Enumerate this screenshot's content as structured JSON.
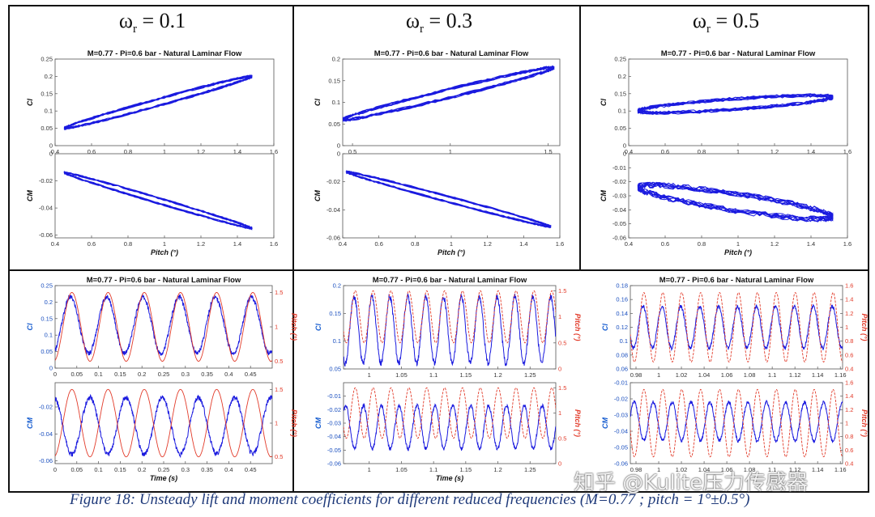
{
  "figure": {
    "omega_labels": [
      {
        "base": "ω",
        "sub": "r",
        "value": " = 0.1"
      },
      {
        "base": "ω",
        "sub": "r",
        "value": " = 0.3"
      },
      {
        "base": "ω",
        "sub": "r",
        "value": " = 0.5"
      }
    ],
    "caption": "Figure 18: Unsteady lift and moment coefficients for different reduced frequencies (M=0.77 ;  pitch = 1°±0.5°)",
    "watermark": "知乎 @Kulite压力传感器"
  },
  "chart_data": [
    {
      "id": "cl-pitch-0.1",
      "type": "line",
      "title": "M=0.77 -  Pi=0.6 bar -  Natural Laminar Flow",
      "xlabel": "",
      "ylabel": "Cl",
      "xlim": [
        0.4,
        1.6
      ],
      "ylim": [
        0,
        0.25
      ],
      "xticks": [
        "0.4",
        "0.6",
        "0.8",
        "1",
        "1.2",
        "1.4",
        "1.6"
      ],
      "yticks": [
        "0",
        "0.05",
        "0.1",
        "0.15",
        "0.2",
        "0.25"
      ],
      "series": [
        {
          "color": "#1a1adf",
          "loop": {
            "x_min": 0.45,
            "x_max": 1.48,
            "y_at_min": 0.05,
            "y_at_max": 0.2,
            "width": 0.02
          }
        }
      ]
    },
    {
      "id": "cm-pitch-0.1",
      "type": "line",
      "title": "",
      "xlabel": "Pitch (°)",
      "ylabel": "CM",
      "xlim": [
        0.4,
        1.6
      ],
      "ylim": [
        -0.062,
        0
      ],
      "xticks": [
        "0.4",
        "0.6",
        "0.8",
        "1",
        "1.2",
        "1.4",
        "1.6"
      ],
      "yticks": [
        "-0.06",
        "-0.04",
        "-0.02",
        "0"
      ],
      "series": [
        {
          "color": "#1a1adf",
          "loop": {
            "x_min": 0.45,
            "x_max": 1.48,
            "y_at_min": -0.014,
            "y_at_max": -0.055,
            "width": 0.004
          }
        }
      ]
    },
    {
      "id": "cl-pitch-0.3",
      "type": "line",
      "title": "M=0.77 -  Pi=0.6 bar -  Natural Laminar Flow",
      "xlabel": "",
      "ylabel": "Cl",
      "xlim": [
        0.45,
        1.56
      ],
      "ylim": [
        0,
        0.2
      ],
      "xticks": [
        "0.5",
        "1",
        "1.5"
      ],
      "xtick_values": [
        0.5,
        1,
        1.5
      ],
      "yticks": [
        "0",
        "0.05",
        "0.1",
        "0.15",
        "0.2"
      ],
      "series": [
        {
          "color": "#1a1adf",
          "loop": {
            "x_min": 0.45,
            "x_max": 1.53,
            "y_at_min": 0.06,
            "y_at_max": 0.18,
            "width": 0.02
          }
        }
      ]
    },
    {
      "id": "cm-pitch-0.3",
      "type": "line",
      "title": "",
      "xlabel": "Pitch (°)",
      "ylabel": "CM",
      "xlim": [
        0.4,
        1.6
      ],
      "ylim": [
        -0.06,
        0
      ],
      "xticks": [
        "0.4",
        "0.6",
        "0.8",
        "1",
        "1.2",
        "1.4",
        "1.6"
      ],
      "yticks": [
        "-0.06",
        "-0.04",
        "-0.02",
        "0"
      ],
      "series": [
        {
          "color": "#1a1adf",
          "loop": {
            "x_min": 0.42,
            "x_max": 1.55,
            "y_at_min": -0.013,
            "y_at_max": -0.052,
            "width": 0.004
          }
        }
      ]
    },
    {
      "id": "cl-pitch-0.5",
      "type": "line",
      "title": "M=0.77 -  Pi=0.6 bar -  Natural Laminar Flow",
      "xlabel": "",
      "ylabel": "Cl",
      "xlim": [
        0.4,
        1.6
      ],
      "ylim": [
        0,
        0.25
      ],
      "xticks": [
        "0.4",
        "0.6",
        "0.8",
        "1",
        "1.2",
        "1.4",
        "1.6"
      ],
      "yticks": [
        "0",
        "0.05",
        "0.1",
        "0.15",
        "0.2",
        "0.25"
      ],
      "series": [
        {
          "color": "#1a1adf",
          "loop": {
            "x_min": 0.45,
            "x_max": 1.52,
            "y_at_min": 0.1,
            "y_at_max": 0.14,
            "width": 0.03
          }
        }
      ]
    },
    {
      "id": "cm-pitch-0.5",
      "type": "line",
      "title": "",
      "xlabel": "Pitch (°)",
      "ylabel": "CM",
      "xlim": [
        0.4,
        1.6
      ],
      "ylim": [
        -0.06,
        0
      ],
      "xticks": [
        "0.4",
        "0.6",
        "0.8",
        "1",
        "1.2",
        "1.4",
        "1.6"
      ],
      "yticks": [
        "-0.06",
        "-0.05",
        "-0.04",
        "-0.03",
        "-0.02",
        "-0.01",
        "0"
      ],
      "series": [
        {
          "color": "#1a1adf",
          "loop": {
            "x_min": 0.45,
            "x_max": 1.52,
            "y_at_min": -0.024,
            "y_at_max": -0.045,
            "width": 0.012
          }
        }
      ]
    },
    {
      "id": "cl-time-0.1",
      "type": "line",
      "title": "M=0.77 -  Pi=0.6 bar -  Natural Laminar Flow",
      "xlabel": "",
      "ylabel": "Cl",
      "ylabel_right": "Pitch (°)",
      "xlim": [
        0,
        0.5
      ],
      "ylim": [
        0,
        0.25
      ],
      "y2lim": [
        0.4,
        1.6
      ],
      "xticks": [
        "0",
        "0.05",
        "0.1",
        "0.15",
        "0.2",
        "0.25",
        "0.3",
        "0.35",
        "0.4",
        "0.45"
      ],
      "yticks": [
        "0",
        "0.05",
        "0.1",
        "0.15",
        "0.2",
        "0.25"
      ],
      "y2ticks": [
        "0.5",
        "1",
        "1.5"
      ],
      "series": [
        {
          "name": "",
          "color": "#1a1adf",
          "sine": {
            "mean": 0.13,
            "amp": 0.085,
            "freq": 12.0,
            "phase": -1.1
          }
        },
        {
          "name": "",
          "color": "#e23b2a",
          "axis": "right",
          "sine": {
            "mean": 1.0,
            "amp": 0.5,
            "freq": 12.0,
            "phase": -1.35
          }
        }
      ]
    },
    {
      "id": "cm-time-0.1",
      "type": "line",
      "title": "",
      "xlabel": "Time (s)",
      "ylabel": "CM",
      "ylabel_right": "Pitch (°)",
      "xlim": [
        0,
        0.5
      ],
      "ylim": [
        -0.062,
        -0.002
      ],
      "y2lim": [
        0.4,
        1.6
      ],
      "xticks": [
        "0",
        "0.05",
        "0.1",
        "0.15",
        "0.2",
        "0.25",
        "0.3",
        "0.35",
        "0.4",
        "0.45"
      ],
      "yticks": [
        "-0.06",
        "-0.04",
        "-0.02"
      ],
      "y2ticks": [
        "0.5",
        "1",
        "1.5"
      ],
      "series": [
        {
          "name": "",
          "color": "#1a1adf",
          "sine": {
            "mean": -0.034,
            "amp": 0.021,
            "freq": 12.0,
            "phase": 1.8
          }
        },
        {
          "name": "",
          "color": "#e23b2a",
          "axis": "right",
          "sine": {
            "mean": 1.0,
            "amp": 0.5,
            "freq": 12.0,
            "phase": -1.35
          }
        }
      ]
    },
    {
      "id": "cl-time-0.3",
      "type": "line",
      "title": "M=0.77 -  Pi=0.6 bar -  Natural Laminar Flow",
      "xlabel": "",
      "ylabel": "Cl",
      "ylabel_right": "Pitch (°)",
      "xlim": [
        0.96,
        1.29
      ],
      "ylim": [
        0.05,
        0.2
      ],
      "y2lim": [
        0,
        1.6
      ],
      "xticks": [
        "1",
        "1.05",
        "1.1",
        "1.15",
        "1.2",
        "1.25"
      ],
      "xtick_values": [
        1,
        1.05,
        1.1,
        1.15,
        1.2,
        1.25
      ],
      "yticks": [
        "0.05",
        "0.1",
        "0.15",
        "0.2"
      ],
      "y2ticks": [
        "0",
        "0.5",
        "1",
        "1.5"
      ],
      "series": [
        {
          "name": "",
          "color": "#1a1adf",
          "sine": {
            "mean": 0.12,
            "amp": 0.06,
            "freq": 36.0,
            "phase": 0.6
          }
        },
        {
          "name": "",
          "color": "#e23b2a",
          "axis": "right",
          "sine": {
            "mean": 1.0,
            "amp": 0.5,
            "freq": 36.0,
            "phase": 0.2
          }
        }
      ]
    },
    {
      "id": "cm-time-0.3",
      "type": "line",
      "title": "",
      "xlabel": "Time (s)",
      "ylabel": "CM",
      "ylabel_right": "Pitch (°)",
      "xlim": [
        0.96,
        1.29
      ],
      "ylim": [
        -0.06,
        0
      ],
      "y2lim": [
        0,
        1.6
      ],
      "xticks": [
        "1",
        "1.05",
        "1.1",
        "1.15",
        "1.2",
        "1.25"
      ],
      "xtick_values": [
        1,
        1.05,
        1.1,
        1.15,
        1.2,
        1.25
      ],
      "yticks": [
        "-0.06",
        "-0.05",
        "-0.04",
        "-0.03",
        "-0.02",
        "-0.01"
      ],
      "y2ticks": [
        "0",
        "0.5",
        "1",
        "1.5"
      ],
      "series": [
        {
          "name": "",
          "color": "#1a1adf",
          "sine": {
            "mean": -0.033,
            "amp": 0.016,
            "freq": 36.0,
            "phase": 3.6
          }
        },
        {
          "name": "",
          "color": "#e23b2a",
          "axis": "right",
          "sine": {
            "mean": 1.0,
            "amp": 0.5,
            "freq": 36.0,
            "phase": 0.2
          }
        }
      ]
    },
    {
      "id": "cl-time-0.5",
      "type": "line",
      "title": "M=0.77 -  Pi=0.6 bar -  Natural Laminar Flow",
      "xlabel": "",
      "ylabel": "Cl",
      "ylabel_right": "Pitch (°)",
      "xlim": [
        0.975,
        1.162
      ],
      "ylim": [
        0.06,
        0.18
      ],
      "y2lim": [
        0.4,
        1.6
      ],
      "xticks": [
        "0.98",
        "1",
        "1.02",
        "1.04",
        "1.06",
        "1.08",
        "1.1",
        "1.12",
        "1.14",
        "1.16"
      ],
      "xtick_values": [
        0.98,
        1,
        1.02,
        1.04,
        1.06,
        1.08,
        1.1,
        1.12,
        1.14,
        1.16
      ],
      "yticks": [
        "0.06",
        "0.08",
        "0.1",
        "0.12",
        "0.14",
        "0.16",
        "0.18"
      ],
      "y2ticks": [
        "0.4",
        "0.6",
        "0.8",
        "1",
        "1.2",
        "1.4",
        "1.6"
      ],
      "series": [
        {
          "name": "",
          "color": "#1a1adf",
          "sine": {
            "mean": 0.12,
            "amp": 0.03,
            "freq": 60.0,
            "phase": 0.5
          }
        },
        {
          "name": "",
          "color": "#e23b2a",
          "axis": "right",
          "sine": {
            "mean": 1.0,
            "amp": 0.5,
            "freq": 60.0,
            "phase": 0.2
          }
        }
      ]
    },
    {
      "id": "cm-time-0.5",
      "type": "line",
      "title": "",
      "xlabel": "",
      "ylabel": "CM",
      "ylabel_right": "Pitch (°)",
      "xlim": [
        0.975,
        1.162
      ],
      "ylim": [
        -0.06,
        -0.01
      ],
      "y2lim": [
        0.4,
        1.6
      ],
      "xticks": [
        "0.98",
        "1",
        "1.02",
        "1.04",
        "1.06",
        "1.08",
        "1.1",
        "1.12",
        "1.14",
        "1.16"
      ],
      "xtick_values": [
        0.98,
        1,
        1.02,
        1.04,
        1.06,
        1.08,
        1.1,
        1.12,
        1.14,
        1.16
      ],
      "yticks": [
        "-0.06",
        "-0.05",
        "-0.04",
        "-0.03",
        "-0.02",
        "-0.01"
      ],
      "y2ticks": [
        "0.4",
        "0.6",
        "0.8",
        "1",
        "1.2",
        "1.4",
        "1.6"
      ],
      "series": [
        {
          "name": "",
          "color": "#1a1adf",
          "sine": {
            "mean": -0.034,
            "amp": 0.012,
            "freq": 60.0,
            "phase": 3.4
          }
        },
        {
          "name": "",
          "color": "#e23b2a",
          "axis": "right",
          "sine": {
            "mean": 1.0,
            "amp": 0.5,
            "freq": 60.0,
            "phase": 0.2
          }
        }
      ]
    }
  ]
}
